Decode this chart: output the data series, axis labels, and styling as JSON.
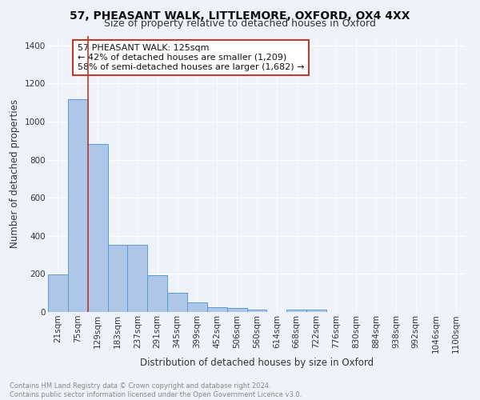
{
  "title1": "57, PHEASANT WALK, LITTLEMORE, OXFORD, OX4 4XX",
  "title2": "Size of property relative to detached houses in Oxford",
  "xlabel": "Distribution of detached houses by size in Oxford",
  "ylabel": "Number of detached properties",
  "categories": [
    "21sqm",
    "75sqm",
    "129sqm",
    "183sqm",
    "237sqm",
    "291sqm",
    "345sqm",
    "399sqm",
    "452sqm",
    "506sqm",
    "560sqm",
    "614sqm",
    "668sqm",
    "722sqm",
    "776sqm",
    "830sqm",
    "884sqm",
    "938sqm",
    "992sqm",
    "1046sqm",
    "1100sqm"
  ],
  "bar_heights": [
    197,
    1118,
    883,
    352,
    352,
    192,
    99,
    50,
    25,
    22,
    12,
    0,
    13,
    13,
    0,
    0,
    0,
    0,
    0,
    0,
    0
  ],
  "bar_color": "#aec6e8",
  "bar_edge_color": "#5b9bd5",
  "property_line_color": "#c0392b",
  "annotation_text": "57 PHEASANT WALK: 125sqm\n← 42% of detached houses are smaller (1,209)\n58% of semi-detached houses are larger (1,682) →",
  "annotation_box_color": "#c0392b",
  "background_color": "#eef2f9",
  "grid_color": "#ffffff",
  "ylim": [
    0,
    1450
  ],
  "yticks": [
    0,
    200,
    400,
    600,
    800,
    1000,
    1200,
    1400
  ],
  "footer_text": "Contains HM Land Registry data © Crown copyright and database right 2024.\nContains public sector information licensed under the Open Government Licence v3.0.",
  "title1_fontsize": 10,
  "title2_fontsize": 9,
  "xlabel_fontsize": 8.5,
  "ylabel_fontsize": 8.5,
  "tick_fontsize": 7.5,
  "annotation_fontsize": 8
}
